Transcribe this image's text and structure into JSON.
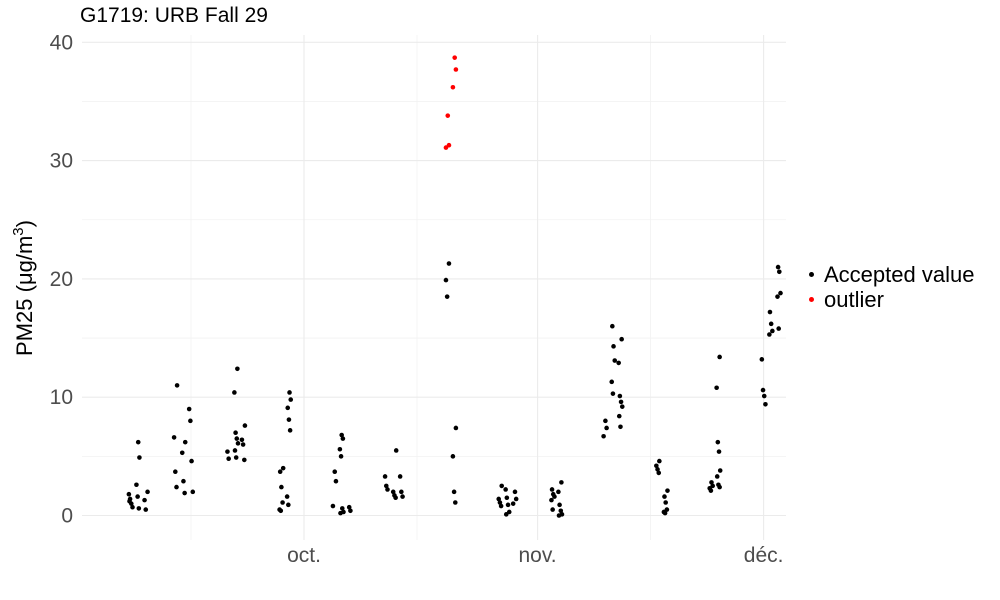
{
  "chart_data": {
    "type": "scatter",
    "title": "G1719: URB Fall 29",
    "ylabel": "PM25",
    "ylabel_unit_main": "(μg/m",
    "ylabel_unit_sup": "3",
    "ylabel_unit_close": ")",
    "ylim": [
      -2,
      40
    ],
    "xlim": [
      "2020-09-06",
      "2020-12-03"
    ],
    "yticks": [
      0,
      10,
      20,
      30,
      40
    ],
    "xticks": [
      {
        "date": "2020-10-01",
        "label": "oct."
      },
      {
        "date": "2020-11-01",
        "label": "nov."
      },
      {
        "date": "2020-12-01",
        "label": "déc."
      }
    ],
    "minor_xticks": [
      "2020-09-16",
      "2020-10-16",
      "2020-11-16"
    ],
    "grid": true,
    "legend_position": "right",
    "series": [
      {
        "name": "Accepted value",
        "color": "#000000",
        "points": [
          [
            "2020-09-08",
            1.8
          ],
          [
            "2020-09-08",
            1.4
          ],
          [
            "2020-09-08",
            1.0
          ],
          [
            "2020-09-08",
            0.7
          ],
          [
            "2020-09-08",
            1.2
          ],
          [
            "2020-09-09",
            6.2
          ],
          [
            "2020-09-09",
            4.9
          ],
          [
            "2020-09-09",
            2.6
          ],
          [
            "2020-09-09",
            1.6
          ],
          [
            "2020-09-09",
            0.6
          ],
          [
            "2020-09-10",
            2.0
          ],
          [
            "2020-09-10",
            1.3
          ],
          [
            "2020-09-10",
            0.5
          ],
          [
            "2020-09-14",
            11.0
          ],
          [
            "2020-09-14",
            6.6
          ],
          [
            "2020-09-14",
            3.7
          ],
          [
            "2020-09-14",
            2.4
          ],
          [
            "2020-09-15",
            6.2
          ],
          [
            "2020-09-15",
            5.3
          ],
          [
            "2020-09-15",
            2.9
          ],
          [
            "2020-09-15",
            1.9
          ],
          [
            "2020-09-16",
            9.0
          ],
          [
            "2020-09-16",
            8.0
          ],
          [
            "2020-09-16",
            4.6
          ],
          [
            "2020-09-16",
            2.0
          ],
          [
            "2020-09-21",
            5.4
          ],
          [
            "2020-09-21",
            4.8
          ],
          [
            "2020-09-22",
            12.4
          ],
          [
            "2020-09-22",
            10.4
          ],
          [
            "2020-09-22",
            7.0
          ],
          [
            "2020-09-22",
            6.5
          ],
          [
            "2020-09-22",
            6.1
          ],
          [
            "2020-09-22",
            5.5
          ],
          [
            "2020-09-22",
            4.9
          ],
          [
            "2020-09-23",
            7.6
          ],
          [
            "2020-09-23",
            6.4
          ],
          [
            "2020-09-23",
            6.0
          ],
          [
            "2020-09-23",
            4.7
          ],
          [
            "2020-09-28",
            4.0
          ],
          [
            "2020-09-28",
            3.7
          ],
          [
            "2020-09-28",
            2.4
          ],
          [
            "2020-09-28",
            1.1
          ],
          [
            "2020-09-28",
            0.5
          ],
          [
            "2020-09-28",
            0.4
          ],
          [
            "2020-09-29",
            10.4
          ],
          [
            "2020-09-29",
            9.8
          ],
          [
            "2020-09-29",
            9.1
          ],
          [
            "2020-09-29",
            8.1
          ],
          [
            "2020-09-29",
            7.2
          ],
          [
            "2020-09-29",
            1.6
          ],
          [
            "2020-09-29",
            0.9
          ],
          [
            "2020-10-05",
            3.7
          ],
          [
            "2020-10-05",
            2.9
          ],
          [
            "2020-10-05",
            0.8
          ],
          [
            "2020-10-06",
            6.8
          ],
          [
            "2020-10-06",
            6.5
          ],
          [
            "2020-10-06",
            5.6
          ],
          [
            "2020-10-06",
            5.0
          ],
          [
            "2020-10-06",
            0.6
          ],
          [
            "2020-10-06",
            0.3
          ],
          [
            "2020-10-06",
            0.2
          ],
          [
            "2020-10-07",
            0.7
          ],
          [
            "2020-10-07",
            0.4
          ],
          [
            "2020-10-12",
            3.3
          ],
          [
            "2020-10-12",
            2.5
          ],
          [
            "2020-10-12",
            2.2
          ],
          [
            "2020-10-13",
            5.5
          ],
          [
            "2020-10-13",
            2.0
          ],
          [
            "2020-10-13",
            1.7
          ],
          [
            "2020-10-13",
            1.5
          ],
          [
            "2020-10-14",
            3.3
          ],
          [
            "2020-10-14",
            2.0
          ],
          [
            "2020-10-14",
            1.6
          ],
          [
            "2020-10-20",
            21.3
          ],
          [
            "2020-10-20",
            19.9
          ],
          [
            "2020-10-20",
            18.5
          ],
          [
            "2020-10-21",
            7.4
          ],
          [
            "2020-10-21",
            5.0
          ],
          [
            "2020-10-21",
            2.0
          ],
          [
            "2020-10-21",
            1.1
          ],
          [
            "2020-10-27",
            2.5
          ],
          [
            "2020-10-27",
            1.4
          ],
          [
            "2020-10-27",
            1.1
          ],
          [
            "2020-10-27",
            0.8
          ],
          [
            "2020-10-28",
            2.2
          ],
          [
            "2020-10-28",
            1.5
          ],
          [
            "2020-10-28",
            0.9
          ],
          [
            "2020-10-28",
            0.3
          ],
          [
            "2020-10-28",
            0.1
          ],
          [
            "2020-10-29",
            2.0
          ],
          [
            "2020-10-29",
            1.4
          ],
          [
            "2020-10-29",
            1.0
          ],
          [
            "2020-11-03",
            2.2
          ],
          [
            "2020-11-03",
            1.8
          ],
          [
            "2020-11-03",
            1.6
          ],
          [
            "2020-11-03",
            1.3
          ],
          [
            "2020-11-03",
            0.5
          ],
          [
            "2020-11-04",
            2.8
          ],
          [
            "2020-11-04",
            2.0
          ],
          [
            "2020-11-04",
            0.9
          ],
          [
            "2020-11-04",
            0.4
          ],
          [
            "2020-11-04",
            0.1
          ],
          [
            "2020-11-04",
            0.0
          ],
          [
            "2020-11-10",
            8.0
          ],
          [
            "2020-11-10",
            7.4
          ],
          [
            "2020-11-10",
            6.7
          ],
          [
            "2020-11-11",
            16.0
          ],
          [
            "2020-11-11",
            14.3
          ],
          [
            "2020-11-11",
            13.1
          ],
          [
            "2020-11-11",
            11.3
          ],
          [
            "2020-11-11",
            10.3
          ],
          [
            "2020-11-12",
            14.9
          ],
          [
            "2020-11-12",
            12.9
          ],
          [
            "2020-11-12",
            10.1
          ],
          [
            "2020-11-12",
            9.6
          ],
          [
            "2020-11-12",
            9.2
          ],
          [
            "2020-11-12",
            8.4
          ],
          [
            "2020-11-12",
            7.5
          ],
          [
            "2020-11-17",
            4.6
          ],
          [
            "2020-11-17",
            4.2
          ],
          [
            "2020-11-17",
            3.9
          ],
          [
            "2020-11-17",
            3.6
          ],
          [
            "2020-11-18",
            2.1
          ],
          [
            "2020-11-18",
            1.6
          ],
          [
            "2020-11-18",
            1.1
          ],
          [
            "2020-11-18",
            0.5
          ],
          [
            "2020-11-18",
            0.3
          ],
          [
            "2020-11-18",
            0.2
          ],
          [
            "2020-11-24",
            2.8
          ],
          [
            "2020-11-24",
            2.5
          ],
          [
            "2020-11-24",
            2.3
          ],
          [
            "2020-11-24",
            2.1
          ],
          [
            "2020-11-25",
            13.4
          ],
          [
            "2020-11-25",
            10.8
          ],
          [
            "2020-11-25",
            6.2
          ],
          [
            "2020-11-25",
            5.4
          ],
          [
            "2020-11-25",
            3.8
          ],
          [
            "2020-11-25",
            3.3
          ],
          [
            "2020-11-25",
            2.6
          ],
          [
            "2020-11-25",
            2.4
          ],
          [
            "2020-12-01",
            13.2
          ],
          [
            "2020-12-01",
            10.6
          ],
          [
            "2020-12-01",
            10.1
          ],
          [
            "2020-12-01",
            9.4
          ],
          [
            "2020-12-02",
            17.2
          ],
          [
            "2020-12-02",
            16.2
          ],
          [
            "2020-12-02",
            15.6
          ],
          [
            "2020-12-02",
            15.3
          ],
          [
            "2020-12-03",
            21.0
          ],
          [
            "2020-12-03",
            20.6
          ],
          [
            "2020-12-03",
            18.8
          ],
          [
            "2020-12-03",
            18.5
          ],
          [
            "2020-12-03",
            15.8
          ]
        ]
      },
      {
        "name": "outlier",
        "color": "#ff0000",
        "points": [
          [
            "2020-10-20",
            33.8
          ],
          [
            "2020-10-20",
            31.3
          ],
          [
            "2020-10-20",
            31.1
          ],
          [
            "2020-10-21",
            38.7
          ],
          [
            "2020-10-21",
            37.7
          ],
          [
            "2020-10-21",
            36.2
          ]
        ]
      }
    ]
  }
}
